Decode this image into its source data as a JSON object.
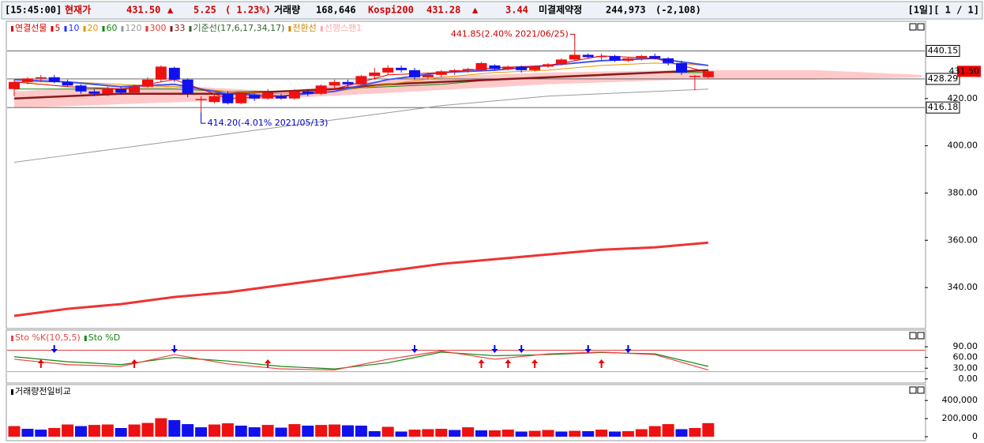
{
  "header": {
    "fields": [
      {
        "text": "[15:45:00]",
        "color": "#000000"
      },
      {
        "text": "현재가",
        "color": "#cc0000"
      },
      {
        "text": "431.50",
        "color": "#cc0000"
      },
      {
        "text": "▲",
        "color": "#cc0000"
      },
      {
        "text": "5.25",
        "color": "#cc0000"
      },
      {
        "text": "( 1.23%)",
        "color": "#cc0000"
      },
      {
        "text": "거래량",
        "color": "#000000"
      },
      {
        "text": "168,646",
        "color": "#000000"
      },
      {
        "text": "Kospi200",
        "color": "#cc0000"
      },
      {
        "text": "431.28",
        "color": "#cc0000"
      },
      {
        "text": "▲",
        "color": "#cc0000"
      },
      {
        "text": "3.44",
        "color": "#cc0000"
      },
      {
        "text": "미결제약정",
        "color": "#000000"
      },
      {
        "text": "244,973",
        "color": "#000000"
      },
      {
        "text": "(-2,108)",
        "color": "#000000"
      }
    ],
    "page": "[1일][ 1 / 1]"
  },
  "price": {
    "legend": [
      {
        "text": "연결선물",
        "color": "#dd0000"
      },
      {
        "text": "5",
        "color": "#dd0000"
      },
      {
        "text": "10",
        "color": "#2233ff"
      },
      {
        "text": "20",
        "color": "#e69500"
      },
      {
        "text": "60",
        "color": "#118811"
      },
      {
        "text": "120",
        "color": "#999999"
      },
      {
        "text": "300",
        "color": "#ee3333"
      },
      {
        "text": "33",
        "color": "#8b1a1a"
      },
      {
        "text": "기준선(17,6,17,34,17)",
        "color": "#336633"
      },
      {
        "text": "전환선",
        "color": "#cc8800"
      },
      {
        "text": "선행스팬1",
        "color": "#ffaaaa"
      }
    ],
    "ylim": [
      323,
      452
    ],
    "yticks": [
      {
        "value": 340,
        "label": "340.00"
      },
      {
        "value": 360,
        "label": "360.00"
      },
      {
        "value": 380,
        "label": "380.00"
      },
      {
        "value": 400,
        "label": "400.00"
      },
      {
        "value": 420,
        "label": "420.00"
      }
    ],
    "up_color": "#ee1111",
    "down_color": "#1111ee",
    "candles": [
      [
        424,
        428,
        421,
        427
      ],
      [
        427,
        429,
        426,
        428.5
      ],
      [
        428.5,
        430,
        427,
        429
      ],
      [
        429,
        430,
        426.5,
        427
      ],
      [
        427,
        428,
        425,
        425.5
      ],
      [
        425.5,
        426,
        422,
        423
      ],
      [
        423,
        424,
        421,
        422
      ],
      [
        422,
        425,
        421,
        424
      ],
      [
        424,
        425,
        421.5,
        422.5
      ],
      [
        422.5,
        426,
        422,
        425
      ],
      [
        425,
        429,
        424.5,
        428
      ],
      [
        428,
        434,
        427,
        433.5
      ],
      [
        433,
        433.5,
        427,
        428
      ],
      [
        428,
        428.5,
        420.5,
        422
      ],
      [
        419.5,
        421,
        414.2,
        419.8
      ],
      [
        418.5,
        421.5,
        418,
        421
      ],
      [
        422,
        423,
        417.5,
        418
      ],
      [
        418,
        422.5,
        417.5,
        422
      ],
      [
        421.5,
        422,
        419,
        420
      ],
      [
        420,
        424,
        419.5,
        422.5
      ],
      [
        421,
        422,
        419.5,
        420
      ],
      [
        420,
        424,
        419.5,
        423
      ],
      [
        423,
        424,
        421,
        422
      ],
      [
        422,
        426,
        421.5,
        425.5
      ],
      [
        425.5,
        428,
        424,
        427
      ],
      [
        427,
        428,
        425,
        426
      ],
      [
        426,
        430,
        425.5,
        429.5
      ],
      [
        429.5,
        433,
        428,
        431
      ],
      [
        431,
        434,
        430,
        433
      ],
      [
        433,
        434,
        431,
        432
      ],
      [
        432,
        433,
        428,
        429
      ],
      [
        429,
        431,
        428,
        430
      ],
      [
        430,
        432,
        429,
        431.5
      ],
      [
        431.5,
        432.5,
        430,
        432
      ],
      [
        432,
        433,
        431,
        432.5
      ],
      [
        432,
        435.5,
        431.5,
        435
      ],
      [
        434,
        434.5,
        432,
        432.5
      ],
      [
        432.5,
        434,
        432,
        433.5
      ],
      [
        433.5,
        434,
        431,
        432
      ],
      [
        432,
        434,
        431.5,
        433.5
      ],
      [
        433.5,
        435,
        433,
        434.5
      ],
      [
        434.5,
        437,
        434,
        436.5
      ],
      [
        436.5,
        441.85,
        436,
        438.5
      ],
      [
        438.5,
        439,
        437,
        437.5
      ],
      [
        437.5,
        439,
        436,
        438
      ],
      [
        438,
        438.5,
        435.5,
        436
      ],
      [
        436,
        437.5,
        435.5,
        437
      ],
      [
        437,
        438.5,
        436,
        438
      ],
      [
        438,
        439,
        436.5,
        437
      ],
      [
        437,
        437.5,
        434,
        435
      ],
      [
        435,
        436,
        430,
        431
      ],
      [
        429.5,
        430,
        423.5,
        429.6
      ],
      [
        429,
        432,
        428.5,
        431.5
      ]
    ],
    "cloud": {
      "x": [
        0,
        10,
        20,
        30,
        40,
        50,
        60,
        68
      ],
      "upper": [
        423,
        426,
        423,
        429,
        431,
        432,
        432,
        430
      ],
      "lower": [
        416,
        418,
        420,
        423,
        426,
        428,
        428,
        429
      ],
      "color": "#ffbbbb"
    },
    "lines": {
      "x": [
        0,
        4,
        8,
        12,
        16,
        20,
        24,
        28,
        32,
        36,
        40,
        44,
        48,
        52
      ],
      "series": [
        {
          "color": "#999999",
          "width": 1,
          "values": [
            393,
            396,
            399,
            402,
            405,
            408,
            411,
            414,
            417,
            419,
            421,
            422,
            423,
            424
          ]
        },
        {
          "color": "#ee3333",
          "width": 3,
          "values": [
            328,
            331,
            333,
            336,
            338,
            341,
            344,
            347,
            350,
            352,
            354,
            356,
            357,
            359
          ]
        },
        {
          "color": "#118811",
          "width": 1,
          "values": [
            424,
            424,
            424,
            424,
            423,
            423,
            424,
            425,
            426,
            428,
            429,
            430,
            431,
            431
          ]
        },
        {
          "color": "#8b1a1a",
          "width": 2.5,
          "values": [
            420,
            421,
            422,
            422,
            422,
            423,
            424,
            426,
            427,
            428,
            429,
            430,
            431,
            432
          ]
        },
        {
          "color": "#e69500",
          "width": 1,
          "values": [
            427,
            427,
            426,
            425,
            423,
            422,
            423,
            426,
            429,
            431,
            432,
            434,
            435,
            434
          ]
        },
        {
          "color": "#4455ee",
          "width": 2,
          "values": [
            428,
            427,
            425,
            426,
            422,
            421,
            423,
            428,
            431,
            432,
            434,
            436,
            437,
            434
          ]
        },
        {
          "color": "#dd0000",
          "width": 1,
          "values": [
            427,
            425,
            424,
            428,
            420,
            421,
            424,
            430,
            431,
            433,
            434,
            438,
            437,
            431
          ]
        }
      ]
    },
    "levels": [
      {
        "value": 440.15,
        "label": "440.15"
      },
      {
        "value": 428.29,
        "label": "428.29"
      },
      {
        "value": 416.18,
        "label": "416.18"
      }
    ],
    "current": {
      "value": 431.5,
      "label": "431.50"
    },
    "annotations": [
      {
        "text": "441.85(2.40% 2021/06/25)",
        "candle": 42,
        "value": 441.85
      },
      {
        "text": "414.20(-4.01% 2021/05/13)",
        "candle": 14,
        "value": 414.2
      }
    ]
  },
  "stoch": {
    "legend": [
      {
        "text": "Sto %K(10,5,5)",
        "color": "#ee4444"
      },
      {
        "text": "Sto %D",
        "color": "#118811"
      }
    ],
    "ylim": [
      -7,
      130
    ],
    "yticks": [
      {
        "value": 0,
        "label": "0.00"
      },
      {
        "value": 30,
        "label": "30.00"
      },
      {
        "value": 60,
        "label": "60.00"
      },
      {
        "value": 90,
        "label": "90.00"
      }
    ],
    "levels": [
      {
        "value": 80,
        "color": "#cc0000"
      },
      {
        "value": 20,
        "color": "#888888"
      }
    ],
    "x": [
      0,
      4,
      8,
      12,
      16,
      20,
      24,
      28,
      32,
      36,
      40,
      44,
      48,
      52
    ],
    "k": [
      55,
      40,
      35,
      68,
      42,
      28,
      25,
      55,
      78,
      55,
      70,
      75,
      68,
      25
    ],
    "d": [
      62,
      48,
      40,
      60,
      50,
      35,
      28,
      45,
      75,
      65,
      68,
      74,
      70,
      35
    ],
    "buy": [
      2,
      9,
      19,
      35,
      37,
      39,
      44
    ],
    "sell": [
      3,
      12,
      30,
      36,
      38,
      43,
      46
    ]
  },
  "volume": {
    "legend": [
      {
        "text": "거래량전일비교",
        "color": "#000000"
      }
    ],
    "ylim": [
      0,
      550000
    ],
    "yticks": [
      {
        "value": 0,
        "label": "0"
      },
      {
        "value": 200000,
        "label": "200,000"
      },
      {
        "value": 400000,
        "label": "400,000"
      }
    ],
    "values": [
      117000,
      87000,
      78000,
      96000,
      135000,
      117000,
      130000,
      135000,
      96000,
      135000,
      152000,
      204000,
      183000,
      139000,
      104000,
      135000,
      148000,
      122000,
      104000,
      130000,
      100000,
      139000,
      122000,
      130000,
      135000,
      126000,
      122000,
      61000,
      109000,
      57000,
      78000,
      83000,
      87000,
      74000,
      104000,
      70000,
      70000,
      78000,
      57000,
      65000,
      74000,
      57000,
      65000,
      61000,
      78000,
      57000,
      61000,
      83000,
      117000,
      139000,
      83000,
      96000,
      150000
    ]
  }
}
